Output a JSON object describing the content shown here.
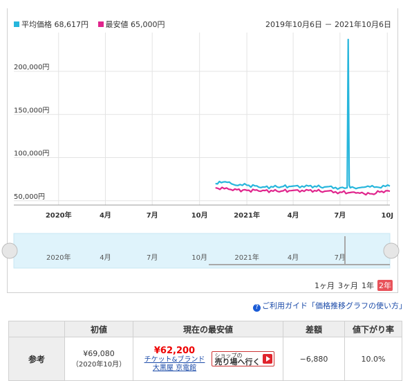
{
  "chart": {
    "legend": [
      {
        "label": "平均価格",
        "value": "68,617円",
        "color": "#27b6dc"
      },
      {
        "label": "最安値",
        "value": "65,000円",
        "color": "#e0248c"
      }
    ],
    "date_range": "2019年10月6日 － 2021年10月6日",
    "y_ticks": [
      "200,000円",
      "150,000円",
      "100,000円",
      "50,000円"
    ],
    "x_ticks": [
      "2020年",
      "4月",
      "7月",
      "10月",
      "2021年",
      "4月",
      "7月",
      "10J"
    ],
    "nav_ticks": [
      "2020年",
      "4月",
      "7月",
      "10月",
      "2021年",
      "4月",
      "7月"
    ],
    "periods": [
      "1ヶ月",
      "3ヶ月",
      "1年",
      "2年"
    ],
    "active_period": "2年"
  },
  "chart_data": {
    "type": "line",
    "x_start": "2019-10-06",
    "x_end": "2021-10-06",
    "ylim": [
      45000,
      245000
    ],
    "grid": true,
    "legend_position": "top-left",
    "series": [
      {
        "name": "平均価格",
        "color": "#27b6dc",
        "x": [
          "2020-11-01",
          "2020-11-20",
          "2020-12-10",
          "2021-01-01",
          "2021-02-01",
          "2021-03-01",
          "2021-04-01",
          "2021-05-01",
          "2021-06-01",
          "2021-07-01",
          "2021-07-15",
          "2021-07-17",
          "2021-07-19",
          "2021-07-21",
          "2021-08-01",
          "2021-08-20",
          "2021-09-10",
          "2021-10-06"
        ],
        "y": [
          70000,
          72000,
          68000,
          68000,
          66000,
          66000,
          67000,
          67000,
          66000,
          65000,
          65000,
          237000,
          68000,
          65000,
          64000,
          66000,
          66000,
          67000
        ]
      },
      {
        "name": "最安値",
        "color": "#e0248c",
        "x": [
          "2020-11-01",
          "2020-12-01",
          "2021-01-01",
          "2021-02-01",
          "2021-03-01",
          "2021-04-01",
          "2021-05-01",
          "2021-06-01",
          "2021-07-01",
          "2021-08-01",
          "2021-09-01",
          "2021-09-20",
          "2021-10-06"
        ],
        "y": [
          65000,
          63000,
          62000,
          62000,
          61000,
          62000,
          62000,
          61000,
          60000,
          59000,
          58000,
          61000,
          61000
        ]
      }
    ]
  },
  "guide": {
    "text": "ご利用ガイド「価格推移グラフの使い方」"
  },
  "ref_table": {
    "headers": [
      "",
      "初値",
      "現在の最安値",
      "差額",
      "値下がり率"
    ],
    "row_label": "参考",
    "initial_price": "¥69,080",
    "initial_date": "（2020年10月）",
    "current_price": "¥62,200",
    "shop_name": "チケット&ブランド 大黒屋 京電館",
    "shop_button_small": "ショップの",
    "shop_button_big": "売り場へ行く",
    "diff": "−6,880",
    "rate": "10.0%"
  }
}
